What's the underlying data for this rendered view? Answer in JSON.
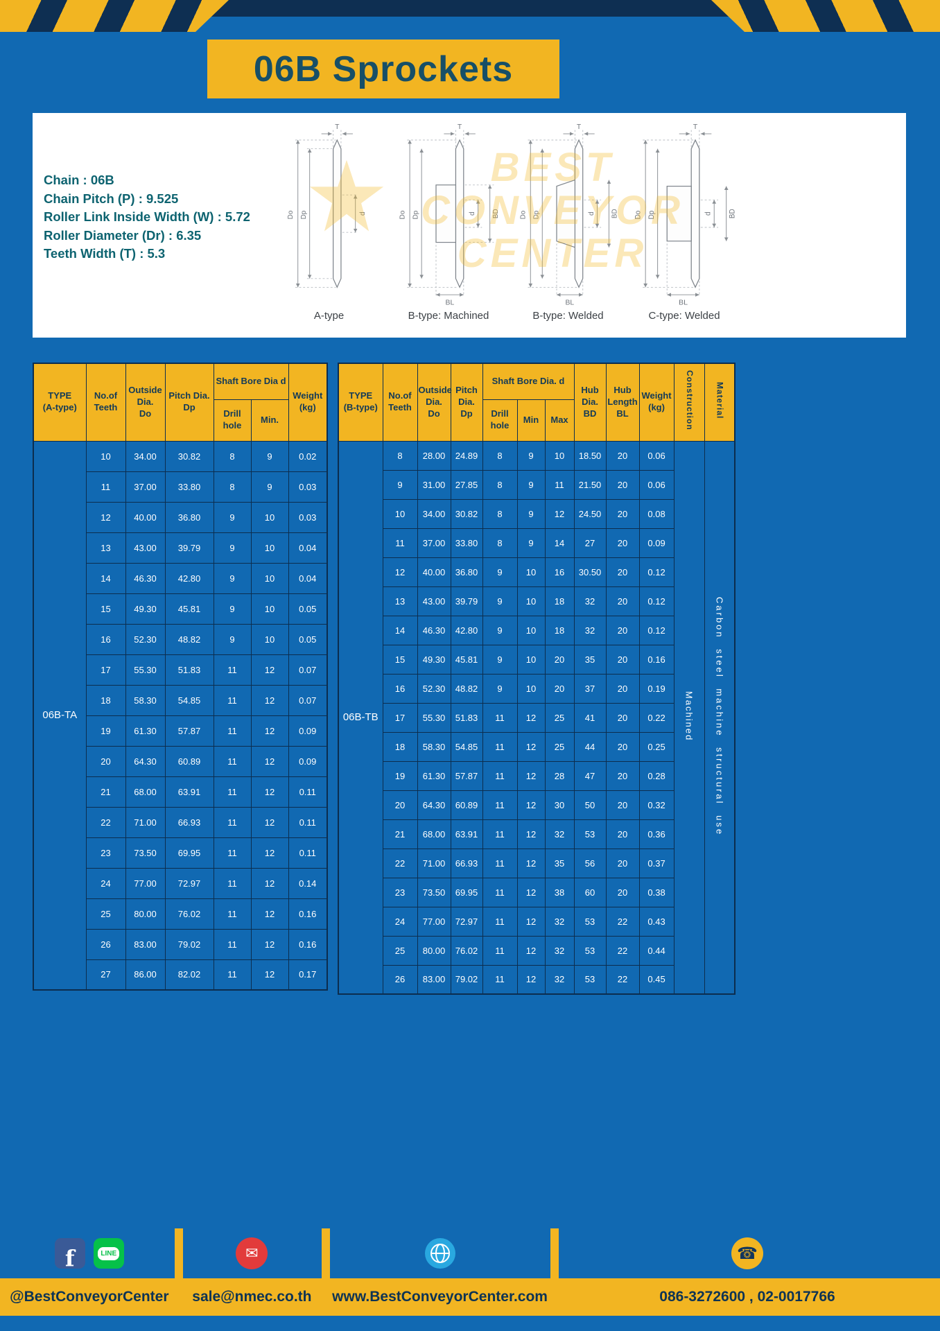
{
  "page": {
    "title": "06B Sprockets"
  },
  "specs": {
    "lines": [
      "Chain : 06B",
      "Chain Pitch (P) : 9.525",
      "Roller Link Inside Width (W) : 5.72",
      "Roller Diameter (Dr) : 6.35",
      "Teeth Width (T) : 5.3"
    ]
  },
  "diagrams": {
    "captions": [
      "A-type",
      "B-type: Machined",
      "B-type: Welded",
      "C-type: Welded"
    ],
    "dims": {
      "t": "T",
      "outside": "Do",
      "pitch": "Dp",
      "bore": "d",
      "hub_dia": "BD",
      "hub_len": "BL"
    }
  },
  "watermark": {
    "lines": [
      "BEST",
      "CONVEYOR",
      "CENTER"
    ]
  },
  "table_a": {
    "headers": {
      "type": "TYPE\n(A-type)",
      "teeth": "No.of\nTeeth",
      "outside": "Outside\nDia.\nDo",
      "pitch": "Pitch Dia.\nDp",
      "shaft_group": "Shaft Bore Dia d",
      "drill": "Drill hole",
      "min": "Min.",
      "weight": "Weight\n(kg)"
    },
    "rows": [
      [
        {
          "t": "06B-TA",
          "rs": 18,
          "cls": "type"
        },
        "10",
        "34.00",
        "30.82",
        "8",
        "9",
        "0.02"
      ],
      [
        "11",
        "37.00",
        "33.80",
        "8",
        "9",
        "0.03"
      ],
      [
        "12",
        "40.00",
        "36.80",
        "9",
        "10",
        "0.03"
      ],
      [
        "13",
        "43.00",
        "39.79",
        "9",
        "10",
        "0.04"
      ],
      [
        "14",
        "46.30",
        "42.80",
        "9",
        "10",
        "0.04"
      ],
      [
        "15",
        "49.30",
        "45.81",
        "9",
        "10",
        "0.05"
      ],
      [
        "16",
        "52.30",
        "48.82",
        "9",
        "10",
        "0.05"
      ],
      [
        "17",
        "55.30",
        "51.83",
        "11",
        "12",
        "0.07"
      ],
      [
        "18",
        "58.30",
        "54.85",
        "11",
        "12",
        "0.07"
      ],
      [
        "19",
        "61.30",
        "57.87",
        "11",
        "12",
        "0.09"
      ],
      [
        "20",
        "64.30",
        "60.89",
        "11",
        "12",
        "0.09"
      ],
      [
        "21",
        "68.00",
        "63.91",
        "11",
        "12",
        "0.11"
      ],
      [
        "22",
        "71.00",
        "66.93",
        "11",
        "12",
        "0.11"
      ],
      [
        "23",
        "73.50",
        "69.95",
        "11",
        "12",
        "0.11"
      ],
      [
        "24",
        "77.00",
        "72.97",
        "11",
        "12",
        "0.14"
      ],
      [
        "25",
        "80.00",
        "76.02",
        "11",
        "12",
        "0.16"
      ],
      [
        "26",
        "83.00",
        "79.02",
        "11",
        "12",
        "0.16"
      ],
      [
        "27",
        "86.00",
        "82.02",
        "11",
        "12",
        "0.17"
      ]
    ]
  },
  "table_b": {
    "headers": {
      "type": "TYPE\n(B-type)",
      "teeth": "No.of\nTeeth",
      "outside": "Outside\nDia.\nDo",
      "pitch": "Pitch\nDia.\nDp",
      "shaft_group": "Shaft Bore Dia. d",
      "drill": "Drill hole",
      "min": "Min",
      "max": "Max",
      "hub_dia": "Hub\nDia.\nBD",
      "hub_len": "Hub\nLength\nBL",
      "weight": "Weight\n(kg)",
      "construction": "Construction",
      "material": "Material"
    },
    "rows": [
      [
        {
          "t": "06B-TB",
          "rs": 19,
          "cls": "type"
        },
        "8",
        "28.00",
        "24.89",
        "8",
        "9",
        "10",
        "18.50",
        "20",
        "0.06",
        {
          "t": "Machined",
          "rs": 19,
          "cls": "vert construction"
        },
        {
          "t": "Carbon steel machine structural use",
          "rs": 19,
          "cls": "vert material"
        }
      ],
      [
        "9",
        "31.00",
        "27.85",
        "8",
        "9",
        "11",
        "21.50",
        "20",
        "0.06"
      ],
      [
        "10",
        "34.00",
        "30.82",
        "8",
        "9",
        "12",
        "24.50",
        "20",
        "0.08"
      ],
      [
        "11",
        "37.00",
        "33.80",
        "8",
        "9",
        "14",
        "27",
        "20",
        "0.09"
      ],
      [
        "12",
        "40.00",
        "36.80",
        "9",
        "10",
        "16",
        "30.50",
        "20",
        "0.12"
      ],
      [
        "13",
        "43.00",
        "39.79",
        "9",
        "10",
        "18",
        "32",
        "20",
        "0.12"
      ],
      [
        "14",
        "46.30",
        "42.80",
        "9",
        "10",
        "18",
        "32",
        "20",
        "0.12"
      ],
      [
        "15",
        "49.30",
        "45.81",
        "9",
        "10",
        "20",
        "35",
        "20",
        "0.16"
      ],
      [
        "16",
        "52.30",
        "48.82",
        "9",
        "10",
        "20",
        "37",
        "20",
        "0.19"
      ],
      [
        "17",
        "55.30",
        "51.83",
        "11",
        "12",
        "25",
        "41",
        "20",
        "0.22"
      ],
      [
        "18",
        "58.30",
        "54.85",
        "11",
        "12",
        "25",
        "44",
        "20",
        "0.25"
      ],
      [
        "19",
        "61.30",
        "57.87",
        "11",
        "12",
        "28",
        "47",
        "20",
        "0.28"
      ],
      [
        "20",
        "64.30",
        "60.89",
        "11",
        "12",
        "30",
        "50",
        "20",
        "0.32"
      ],
      [
        "21",
        "68.00",
        "63.91",
        "11",
        "12",
        "32",
        "53",
        "20",
        "0.36"
      ],
      [
        "22",
        "71.00",
        "66.93",
        "11",
        "12",
        "35",
        "56",
        "20",
        "0.37"
      ],
      [
        "23",
        "73.50",
        "69.95",
        "11",
        "12",
        "38",
        "60",
        "20",
        "0.38"
      ],
      [
        "24",
        "77.00",
        "72.97",
        "11",
        "12",
        "32",
        "53",
        "22",
        "0.43"
      ],
      [
        "25",
        "80.00",
        "76.02",
        "11",
        "12",
        "32",
        "53",
        "22",
        "0.44"
      ],
      [
        "26",
        "83.00",
        "79.02",
        "11",
        "12",
        "32",
        "53",
        "22",
        "0.45"
      ]
    ]
  },
  "footer": {
    "facebook_letter": "f",
    "line_label": "LINE",
    "email_glyph": "✉",
    "phone_glyph": "☎",
    "facebook_handle": "@BestConveyorCenter",
    "email": "sale@nmec.co.th",
    "website": "www.BestConveyorCenter.com",
    "phones": "086-3272600 , 02-0017766"
  },
  "colors": {
    "yellow": "#f2b522",
    "blue": "#1169b2",
    "navy": "#0e2f52",
    "teal": "#0d6370"
  }
}
